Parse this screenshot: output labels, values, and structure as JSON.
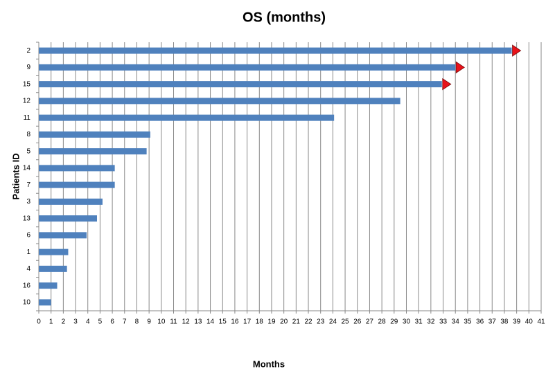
{
  "chart_data": {
    "type": "bar",
    "orientation": "horizontal",
    "title": "OS (months)",
    "x_label": "Months",
    "y_label": "Patients ID",
    "categories": [
      "2",
      "9",
      "15",
      "12",
      "11",
      "8",
      "5",
      "14",
      "7",
      "3",
      "13",
      "6",
      "1",
      "4",
      "16",
      "10"
    ],
    "values": [
      38.6,
      34.0,
      32.9,
      29.5,
      24.1,
      9.1,
      8.8,
      6.2,
      6.2,
      5.2,
      4.75,
      3.9,
      2.4,
      2.3,
      1.5,
      1.0
    ],
    "color": "#4f81bd",
    "ongoing": [
      true,
      true,
      true,
      false,
      false,
      false,
      false,
      false,
      false,
      false,
      false,
      false,
      false,
      false,
      false,
      false
    ],
    "arrow_color": "#e8121a",
    "xlim": [
      0,
      41
    ],
    "xticks": [
      0,
      1,
      2,
      3,
      4,
      5,
      6,
      7,
      8,
      9,
      10,
      11,
      12,
      13,
      14,
      15,
      16,
      17,
      18,
      19,
      20,
      21,
      22,
      23,
      24,
      25,
      26,
      27,
      28,
      29,
      30,
      31,
      32,
      33,
      34,
      35,
      36,
      37,
      38,
      39,
      40,
      41
    ],
    "grid": true
  }
}
